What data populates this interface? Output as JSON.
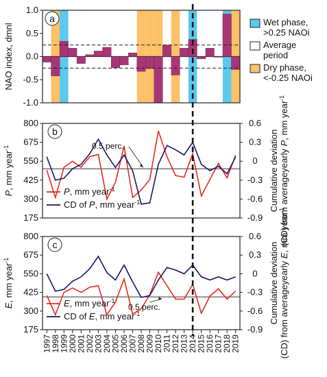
{
  "chart_data": [
    {
      "panel": "a",
      "type": "bar",
      "ylabel": "NAO index, dmnl",
      "ylim": [
        -1.0,
        1.0
      ],
      "yticks": [
        "1.0",
        "0.5",
        "0.0",
        "-0.5",
        "-1.0"
      ],
      "threshold_lines": [
        0.25,
        -0.25
      ],
      "x": [
        1997,
        1998,
        1999,
        2000,
        2001,
        2002,
        2003,
        2004,
        2005,
        2006,
        2007,
        2008,
        2009,
        2010,
        2011,
        2012,
        2013,
        2014,
        2015,
        2016,
        2017,
        2018,
        2019
      ],
      "values": [
        -0.12,
        -0.42,
        0.33,
        0.18,
        -0.15,
        0.04,
        0.12,
        0.2,
        -0.24,
        -0.18,
        0.08,
        -0.32,
        -0.26,
        -1.0,
        0.25,
        -0.4,
        0.18,
        0.37,
        -0.05,
        0.18,
        0.0,
        0.92,
        -0.28
      ],
      "phase": [
        "avg",
        "dry",
        "wet",
        "avg",
        "avg",
        "avg",
        "avg",
        "avg",
        "avg",
        "avg",
        "avg",
        "dry",
        "dry",
        "dry",
        "avg",
        "dry",
        "avg",
        "wet",
        "avg",
        "avg",
        "avg",
        "wet",
        "dry"
      ],
      "legend": [
        {
          "label": "Wet phase, >0.25 NAOi",
          "lines": [
            "Wet phase,",
            ">0.25 NAOi"
          ],
          "color": "#5bc8ec"
        },
        {
          "label": "Average period",
          "lines": [
            "Average",
            "period"
          ],
          "color": "#ffffff"
        },
        {
          "label": "Dry phase, <-0.25 NAOi",
          "lines": [
            "Dry phase,",
            "<-0.25 NAOi"
          ],
          "color": "#fdc16a"
        }
      ],
      "bar_color": "#a83674"
    },
    {
      "panel": "b",
      "type": "line",
      "ylabel": "P, mm year-1",
      "ylim": [
        175,
        800
      ],
      "yticks": [
        "800",
        "675",
        "550",
        "425",
        "300",
        "175"
      ],
      "y2label": "Cumulative deviation (CD) from average yearly P, mm year-1",
      "y2lim": [
        -0.9,
        0.6
      ],
      "y2ticks": [
        "0.6",
        "0.3",
        "0",
        "-0.3",
        "-0.6",
        "-0.9"
      ],
      "annotation": "0.5 perc.",
      "reference_line": 500,
      "x": [
        1997,
        1998,
        1999,
        2000,
        2001,
        2002,
        2003,
        2004,
        2005,
        2006,
        2007,
        2008,
        2009,
        2010,
        2011,
        2012,
        2013,
        2014,
        2015,
        2016,
        2017,
        2018,
        2019
      ],
      "series": [
        {
          "name": "P, mm year-1",
          "axis": "left",
          "color": "#e8291b",
          "values": [
            490,
            310,
            510,
            550,
            510,
            580,
            595,
            300,
            410,
            650,
            310,
            360,
            430,
            750,
            580,
            455,
            445,
            600,
            320,
            430,
            535,
            440,
            590
          ]
        },
        {
          "name": "CD of P, mm year-1",
          "axis": "right",
          "color": "#1a1464",
          "values": [
            0.07,
            -0.3,
            -0.27,
            -0.12,
            -0.05,
            0.12,
            0.35,
            0.1,
            -0.1,
            0.1,
            -0.15,
            -0.68,
            -0.66,
            -0.05,
            0.25,
            0.18,
            0.1,
            0.3,
            -0.05,
            -0.15,
            -0.08,
            -0.2,
            0.07
          ]
        }
      ],
      "legend_labels": [
        {
          "prefix": "P",
          "suffix": ", mm year"
        },
        {
          "prefix": "CD of ",
          "italic": "P",
          "suffix": ", mm year"
        }
      ],
      "ylabel_parts": {
        "prefix": "",
        "italic": "P",
        "suffix": ", mm year"
      },
      "y2label_lines": [
        "Cumulative deviation",
        "(CD) from average",
        "yearly P, mm year"
      ]
    },
    {
      "panel": "c",
      "type": "line",
      "ylabel": "E, mm year-1",
      "ylim": [
        175,
        800
      ],
      "yticks": [
        "800",
        "675",
        "550",
        "425",
        "300",
        "175"
      ],
      "y2label": "Cumulative deviation (CD) from average yearly E, mm year-1",
      "y2lim": [
        -0.9,
        0.6
      ],
      "y2ticks": [
        "0.6",
        "0.3",
        "0",
        "-0.3",
        "-0.6",
        "-0.9"
      ],
      "annotation": "0.5 perc.",
      "reference_line": 395,
      "x": [
        1997,
        1998,
        1999,
        2000,
        2001,
        2002,
        2003,
        2004,
        2005,
        2006,
        2007,
        2008,
        2009,
        2010,
        2011,
        2012,
        2013,
        2014,
        2015,
        2016,
        2017,
        2018,
        2019
      ],
      "series": [
        {
          "name": "E, mm year-1",
          "axis": "left",
          "color": "#e8291b",
          "values": [
            405,
            275,
            425,
            455,
            425,
            460,
            470,
            275,
            360,
            515,
            280,
            315,
            410,
            560,
            470,
            380,
            380,
            480,
            285,
            400,
            450,
            380,
            435
          ]
        },
        {
          "name": "CD of E, mm year-1",
          "axis": "right",
          "color": "#1a1464",
          "values": [
            0.0,
            -0.28,
            -0.25,
            -0.12,
            -0.05,
            0.08,
            0.28,
            0.02,
            -0.1,
            0.14,
            -0.13,
            -0.38,
            -0.35,
            -0.1,
            0.1,
            0.06,
            0.0,
            0.14,
            -0.05,
            -0.1,
            -0.05,
            -0.1,
            -0.05
          ]
        }
      ],
      "legend_labels": [
        {
          "prefix": "E",
          "suffix": ", mm year"
        },
        {
          "prefix": "CD of ",
          "italic": "E",
          "suffix": ", mm year"
        }
      ],
      "ylabel_parts": {
        "prefix": "",
        "italic": "E",
        "suffix": ", mm year"
      },
      "y2label_lines": [
        "Cumulative deviation",
        "(CD) from average",
        "yearly E, mm year"
      ]
    }
  ],
  "panel_labels": [
    "a",
    "b",
    "c"
  ],
  "superscript": "-1",
  "year_labels": [
    "1997",
    "1998",
    "1999",
    "2000",
    "2001",
    "2002",
    "2003",
    "2004",
    "2005",
    "2006",
    "2007",
    "2008",
    "2009",
    "2010",
    "2011",
    "2012",
    "2013",
    "2014",
    "2015",
    "2016",
    "2017",
    "2018",
    "2019"
  ],
  "vertical_marker_year": 2014
}
